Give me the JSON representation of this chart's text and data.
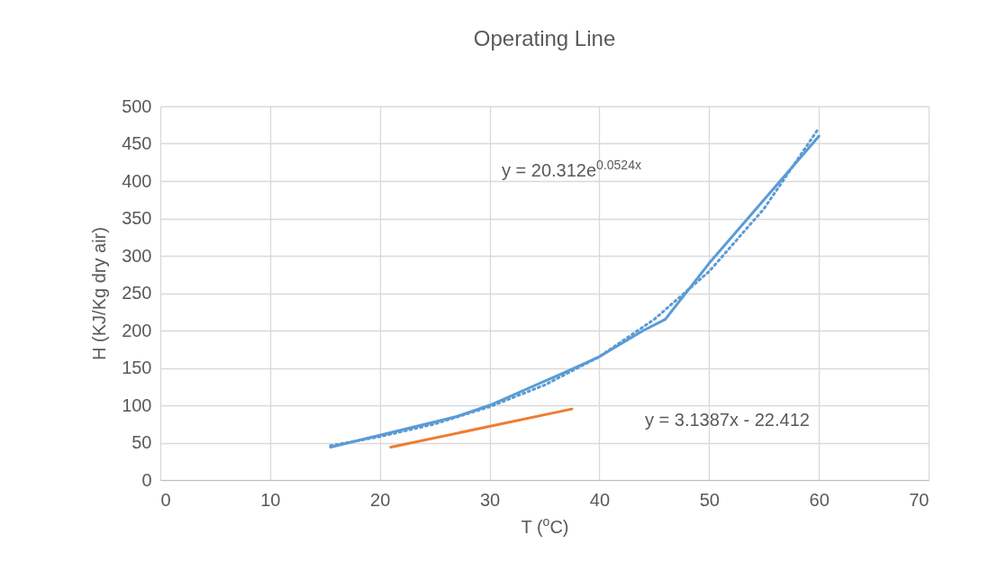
{
  "chart_data": {
    "type": "line",
    "title": "Operating Line",
    "xlabel": "T ($^{o}$C)",
    "ylabel": "H (KJ/Kg dry air)",
    "xlim": [
      0,
      70
    ],
    "xticks": [
      0,
      10,
      20,
      30,
      40,
      50,
      60,
      70
    ],
    "ylim": [
      0,
      500
    ],
    "yticks": [
      0,
      50,
      100,
      150,
      200,
      250,
      300,
      350,
      400,
      450,
      500
    ],
    "grid": true,
    "series": [
      {
        "color": "#5b9bd5",
        "x": [
          15.5,
          20,
          27,
          30,
          37,
          40,
          44,
          46,
          50,
          55,
          60
        ],
        "values": [
          44,
          60,
          85,
          100,
          145,
          165,
          200,
          215,
          290,
          375,
          460
        ]
      },
      {
        "color": "#ed7d31",
        "x": [
          21,
          37.5
        ],
        "values": [
          44,
          95
        ]
      },
      {
        "type": "line",
        "line_style": "dotted",
        "color": "#5b9bd5",
        "x": [
          15.5,
          20,
          25,
          30,
          35,
          40,
          45,
          50,
          55,
          60
        ],
        "values": [
          46,
          58,
          75,
          98,
          127,
          165,
          215,
          279,
          363,
          471
        ]
      }
    ],
    "annotations": [
      "y = 20.312e$^{0.0524x}$",
      "y = 3.1387x - 22.412"
    ]
  }
}
